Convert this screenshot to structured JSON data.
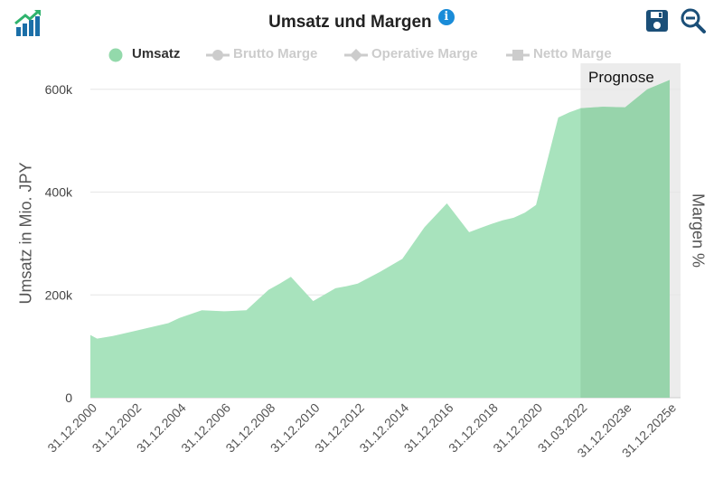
{
  "header": {
    "title": "Umsatz und Margen",
    "info_icon": "i",
    "logo_icon": "rising-bar-chart-icon",
    "save_icon": "floppy-disk-icon",
    "zoom_icon": "zoom-out-icon"
  },
  "colors": {
    "area": "#a8e3bd",
    "forecast_area": "#97d4ab",
    "forecast_band": "#ececec",
    "legend_active": "#93d9ab",
    "legend_inactive": "#cccccc",
    "icon": "#1b4f78"
  },
  "chart_data": {
    "type": "area",
    "title": "Umsatz und Margen",
    "ylabel": "Umsatz in Mio. JPY",
    "y2label": "Margen %",
    "ylim": [
      0,
      650000
    ],
    "yticks": [
      0,
      200000,
      400000,
      600000
    ],
    "ytick_labels": [
      "0",
      "200k",
      "400k",
      "600k"
    ],
    "xtick_labels": [
      "31.12.2000",
      "31.12.2002",
      "31.12.2004",
      "31.12.2006",
      "31.12.2008",
      "31.12.2010",
      "31.12.2012",
      "31.12.2014",
      "31.12.2016",
      "31.12.2018",
      "31.12.2020",
      "31.03.2022",
      "31.12.2023e",
      "31.12.2025e"
    ],
    "x": [
      0,
      0.3,
      1,
      2,
      3,
      3.5,
      4,
      5,
      6,
      7,
      7.5,
      8,
      8.5,
      9,
      10,
      11,
      11.5,
      12,
      13,
      14,
      15,
      16,
      17,
      17.5,
      18,
      18.5,
      19,
      19.5,
      20,
      21,
      21.5,
      22,
      23,
      24,
      25,
      26
    ],
    "values": [
      122000,
      115000,
      120000,
      130000,
      140000,
      145000,
      155000,
      170000,
      168000,
      170000,
      190000,
      210000,
      222000,
      235000,
      188000,
      213000,
      217000,
      222000,
      245000,
      270000,
      332000,
      378000,
      322000,
      330000,
      338000,
      345000,
      350000,
      360000,
      375000,
      545000,
      555000,
      563000,
      566000,
      565000,
      600000,
      618000
    ],
    "forecast_start_x": 22,
    "forecast_label": "Prognose",
    "legend": [
      {
        "label": "Umsatz",
        "active": true,
        "marker": "circle"
      },
      {
        "label": "Brutto Marge",
        "active": false,
        "marker": "line-circle"
      },
      {
        "label": "Operative Marge",
        "active": false,
        "marker": "line-diamond"
      },
      {
        "label": "Netto Marge",
        "active": false,
        "marker": "line-square"
      }
    ]
  }
}
